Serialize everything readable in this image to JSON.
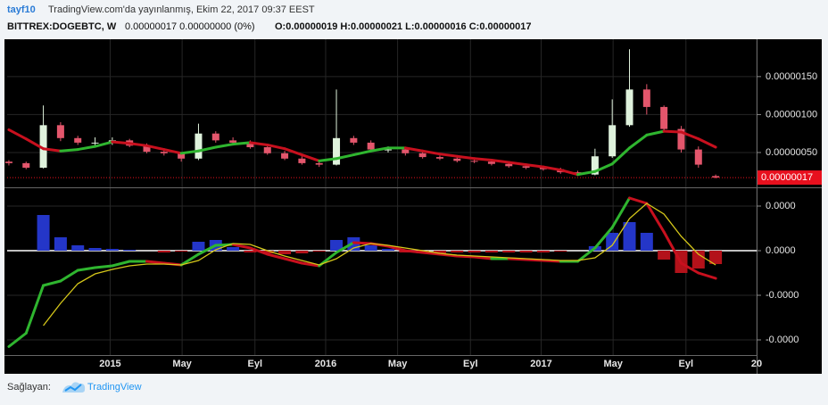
{
  "header": {
    "user": "tayf10",
    "published": "TradingView.com'da yayınlanmış, Ekim 22, 2017 09:37 EEST"
  },
  "chart_data": [
    {
      "type": "candlestick",
      "symbol": "BITTREX:DOGEBTC, W",
      "change": "0.00000017 0.00000000 (0%)",
      "ohlc": "O:0.00000019 H:0.00000021 L:0.00000016 C:0.00000017",
      "x": [
        2014.53,
        2014.61,
        2014.69,
        2014.77,
        2014.85,
        2014.93,
        2015.01,
        2015.09,
        2015.17,
        2015.25,
        2015.33,
        2015.41,
        2015.49,
        2015.57,
        2015.65,
        2015.73,
        2015.81,
        2015.89,
        2015.97,
        2016.05,
        2016.13,
        2016.21,
        2016.29,
        2016.37,
        2016.45,
        2016.53,
        2016.61,
        2016.69,
        2016.77,
        2016.85,
        2016.93,
        2017.01,
        2017.09,
        2017.17,
        2017.25,
        2017.33,
        2017.41,
        2017.49,
        2017.57,
        2017.65,
        2017.73,
        2017.81
      ],
      "open": [
        3.8e-07,
        3.6e-07,
        3e-07,
        8.6e-07,
        6.9e-07,
        6.3e-07,
        6.3e-07,
        6.6e-07,
        5.9e-07,
        5.1e-07,
        4.9e-07,
        4.2e-07,
        7.5e-07,
        6.6e-07,
        6.3e-07,
        5.7e-07,
        4.9e-07,
        4.2e-07,
        3.6e-07,
        3.4e-07,
        6.9e-07,
        6.3e-07,
        5.4e-07,
        5.4e-07,
        4.9e-07,
        4.4e-07,
        4.2e-07,
        3.9e-07,
        3.8e-07,
        3.5e-07,
        3.2e-07,
        3e-07,
        2.8e-07,
        2.4e-07,
        2.1e-07,
        4.5e-07,
        8.6e-07,
        1.33e-06,
        1.1e-06,
        8.1e-07,
        5.4e-07,
        1.9e-07
      ],
      "high": [
        4e-07,
        3.8e-07,
        1.12e-06,
        9e-07,
        7.2e-07,
        7e-07,
        7e-07,
        6.8e-07,
        6.2e-07,
        5.4e-07,
        5e-07,
        8.8e-07,
        7.8e-07,
        7e-07,
        6.6e-07,
        6e-07,
        5.2e-07,
        4.5e-07,
        4e-07,
        1.33e-06,
        7.2e-07,
        6.6e-07,
        5.8e-07,
        5.6e-07,
        5.2e-07,
        4.6e-07,
        4.4e-07,
        4.2e-07,
        4e-07,
        3.7e-07,
        3.4e-07,
        3.2e-07,
        3e-07,
        2.6e-07,
        5.5e-07,
        1.2e-06,
        1.86e-06,
        1.4e-06,
        1.12e-06,
        8.5e-07,
        5.8e-07,
        2.1e-07
      ],
      "low": [
        3.3e-07,
        2.8e-07,
        2.9e-07,
        6.5e-07,
        6e-07,
        5.8e-07,
        6e-07,
        5.7e-07,
        4.9e-07,
        4.6e-07,
        3.8e-07,
        4e-07,
        6.3e-07,
        6e-07,
        5.5e-07,
        4.7e-07,
        4e-07,
        3.4e-07,
        3.1e-07,
        3.3e-07,
        6e-07,
        5.2e-07,
        5e-07,
        4.6e-07,
        4.2e-07,
        4e-07,
        3.7e-07,
        3.6e-07,
        3.3e-07,
        3e-07,
        2.8e-07,
        2.6e-07,
        2.2e-07,
        1.9e-07,
        2e-07,
        4.3e-07,
        8.4e-07,
        1e-06,
        7.8e-07,
        5e-07,
        3e-07,
        1.6e-07
      ],
      "close": [
        3.6e-07,
        3e-07,
        8.6e-07,
        6.9e-07,
        6.3e-07,
        6.3e-07,
        6.6e-07,
        5.9e-07,
        5.1e-07,
        4.9e-07,
        4.2e-07,
        7.5e-07,
        6.6e-07,
        6.3e-07,
        5.7e-07,
        4.9e-07,
        4.2e-07,
        3.6e-07,
        3.4e-07,
        6.9e-07,
        6.3e-07,
        5.4e-07,
        5.4e-07,
        4.9e-07,
        4.4e-07,
        4.2e-07,
        3.9e-07,
        3.8e-07,
        3.5e-07,
        3.2e-07,
        3e-07,
        2.8e-07,
        2.4e-07,
        2.1e-07,
        4.5e-07,
        8.6e-07,
        1.33e-06,
        1.1e-06,
        8.1e-07,
        5.4e-07,
        3.4e-07,
        1.7e-07
      ],
      "up_color": "#dff2dc",
      "down_color": "#e3566c",
      "ma": {
        "values": [
          8e-07,
          6.8e-07,
          5.5e-07,
          5.2e-07,
          5.4e-07,
          5.8e-07,
          6.4e-07,
          6.2e-07,
          5.9e-07,
          5.4e-07,
          4.9e-07,
          5.2e-07,
          5.7e-07,
          6.1e-07,
          6.3e-07,
          6e-07,
          5.5e-07,
          4.7e-07,
          3.9e-07,
          4.2e-07,
          4.7e-07,
          5.2e-07,
          5.6e-07,
          5.6e-07,
          5.2e-07,
          4.8e-07,
          4.5e-07,
          4.2e-07,
          4e-07,
          3.7e-07,
          3.4e-07,
          3.1e-07,
          2.7e-07,
          2.1e-07,
          2.5e-07,
          3.5e-07,
          5.6e-07,
          7.3e-07,
          7.8e-07,
          7.7e-07,
          6.8e-07,
          5.7e-07
        ],
        "rising_color": "#2fb52f",
        "falling_color": "#c8101e"
      },
      "last_label": "0.00000017",
      "last_color": "#e8101e",
      "xlim": [
        2014.522,
        2018
      ],
      "xticks": [
        2015,
        {
          "value": 2015.334,
          "label": "May"
        },
        {
          "value": 2015.672,
          "label": "Eyl"
        },
        2016,
        {
          "value": 2016.334,
          "label": "May"
        },
        {
          "value": 2016.672,
          "label": "Eyl"
        },
        2017,
        {
          "value": 2017.334,
          "label": "May"
        },
        {
          "value": 2017.672,
          "label": "Eyl"
        },
        {
          "value": 2018,
          "label": "20"
        }
      ],
      "ylim": [
        6.5e-08,
        1.98e-06
      ],
      "yticks": [
        {
          "value": 5e-07,
          "label": "0.00000050"
        },
        {
          "value": 1e-06,
          "label": "0.00000100"
        },
        {
          "value": 1.5e-06,
          "label": "0.00000150"
        }
      ],
      "grid": true
    },
    {
      "type": "bar-line",
      "series": [
        {
          "kind": "bar",
          "color": "#2436c8",
          "negative_color": "#b3121a",
          "values": [
            0,
            0,
            8e-09,
            3e-09,
            1.2e-09,
            6e-10,
            4e-10,
            2e-10,
            0,
            -4e-10,
            -2e-10,
            2e-09,
            2.4e-09,
            8e-10,
            -4e-10,
            -6e-10,
            -8e-10,
            -6e-10,
            -2e-10,
            2.4e-09,
            3e-09,
            1.2e-09,
            4e-10,
            -4e-10,
            -6e-10,
            -6e-10,
            -4e-10,
            -4e-10,
            -4e-10,
            -4e-10,
            -4e-10,
            -4e-10,
            -2e-10,
            0,
            1e-09,
            4e-09,
            6.4e-09,
            4e-09,
            -2e-09,
            -5e-09,
            -4e-09,
            -3e-09
          ]
        },
        {
          "kind": "line",
          "rising_color": "#2fb52f",
          "falling_color": "#c8101e",
          "values": [
            -2.15e-08,
            -1.85e-08,
            -7.8e-09,
            -6.8e-09,
            -4.4e-09,
            -3.8e-09,
            -3.4e-09,
            -2.4e-09,
            -2.4e-09,
            -2.8e-09,
            -3.2e-09,
            -8e-10,
            1.2e-09,
            1.4e-09,
            6e-10,
            -8e-10,
            -1.8e-09,
            -2.8e-09,
            -3.4e-09,
            -4e-10,
            1.8e-09,
            1.6e-09,
            1e-09,
            0,
            -4e-10,
            -8e-10,
            -1.2e-09,
            -1.4e-09,
            -1.8e-09,
            -1.8e-09,
            -2e-09,
            -2.2e-09,
            -2.4e-09,
            -2.4e-09,
            6e-10,
            5.2e-09,
            1.18e-08,
            1.06e-08,
            4.2e-09,
            -2.8e-09,
            -5e-09,
            -6.2e-09
          ]
        },
        {
          "kind": "line",
          "color": "#d6c81a",
          "values": [
            null,
            null,
            -1.68e-08,
            -1.18e-08,
            -7.4e-09,
            -5.2e-09,
            -4.2e-09,
            -3.4e-09,
            -3e-09,
            -3e-09,
            -3.2e-09,
            -2.2e-09,
            2e-10,
            1.6e-09,
            1.4e-09,
            0,
            -1.2e-09,
            -2.2e-09,
            -3.2e-09,
            -1.8e-09,
            6e-10,
            1.6e-09,
            1.2e-09,
            6e-10,
            0,
            -6e-10,
            -1e-09,
            -1.2e-09,
            -1.4e-09,
            -1.6e-09,
            -1.8e-09,
            -2e-09,
            -2.2e-09,
            -2.2e-09,
            -1.6e-09,
            1.2e-09,
            7.2e-09,
            1.06e-08,
            8.2e-09,
            3.2e-09,
            -8e-10,
            -3.2e-09
          ]
        }
      ],
      "ylim": [
        -2.34e-08,
        1.38e-08
      ],
      "yticks": [
        {
          "value": 1e-08,
          "label": "0.0000"
        },
        {
          "value": 0,
          "label": "0.0000"
        },
        {
          "value": -1e-08,
          "label": "-0.0000"
        },
        {
          "value": -2e-08,
          "label": "-0.0000"
        }
      ],
      "grid": true
    }
  ],
  "footer": {
    "provided": "Sağlayan:",
    "brand": "TradingView"
  }
}
